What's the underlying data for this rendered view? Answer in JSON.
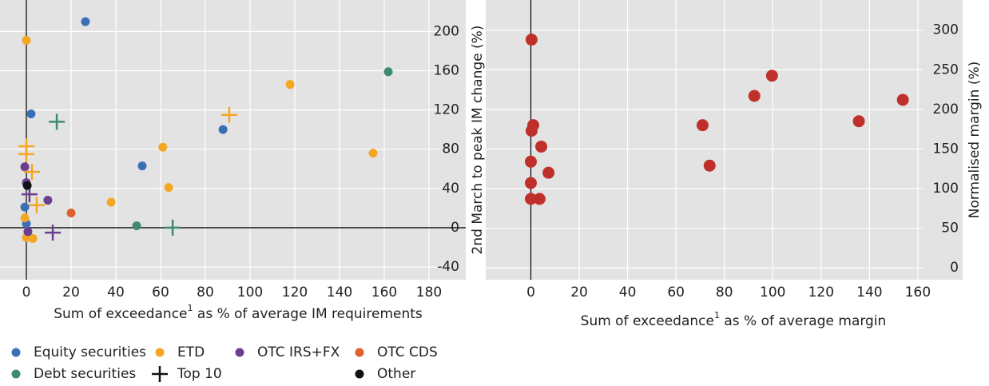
{
  "chart_data": [
    {
      "type": "scatter",
      "x_label": [
        "Sum of exceedance",
        "1",
        " as % of average IM requirements"
      ],
      "y_label": "2nd March to peak IM change (%)",
      "xlim": [
        -10,
        185
      ],
      "ylim": [
        -53,
        228
      ],
      "xticks": [
        0,
        20,
        40,
        60,
        80,
        100,
        120,
        140,
        160,
        180
      ],
      "yticks": [
        -40,
        0,
        40,
        80,
        120,
        160,
        200
      ],
      "grid": true,
      "zero_lines": true,
      "series": [
        {
          "name": "Equity securities",
          "color": "#3a6fb8",
          "marker": "dot",
          "x": [
            26.4,
            2.1,
            87.9,
            51.8,
            -0.7,
            0
          ],
          "y": [
            210,
            116,
            100,
            63,
            21,
            4
          ]
        },
        {
          "name": "ETD",
          "color": "#f5a623",
          "marker": "dot",
          "x": [
            0,
            117.9,
            61,
            155,
            63.6,
            37.9,
            -0.7,
            0,
            2.9
          ],
          "y": [
            191,
            146,
            82,
            76,
            41,
            26,
            10,
            -10,
            -11
          ]
        },
        {
          "name": "OTC IRS+FX",
          "color": "#6b3f8f",
          "marker": "dot",
          "x": [
            -0.7,
            0,
            9.6,
            0.7
          ],
          "y": [
            62,
            46,
            28,
            -4
          ]
        },
        {
          "name": "OTC CDS",
          "color": "#e0612b",
          "marker": "dot",
          "x": [
            20
          ],
          "y": [
            15
          ]
        },
        {
          "name": "Debt securities",
          "color": "#3f8a70",
          "marker": "dot",
          "x": [
            161.8,
            49.3
          ],
          "y": [
            159,
            2
          ]
        },
        {
          "name": "Top 10",
          "color": "#111111",
          "marker": "plus",
          "x": [
            13.6,
            65.4,
            90.7,
            0,
            0,
            2.5,
            4.6,
            1.4,
            11.8
          ],
          "y": [
            108,
            0,
            115,
            83,
            75,
            57,
            23,
            34,
            -5
          ],
          "point_colors": [
            "#3f8a70",
            "#3f8a70",
            "#f5a623",
            "#f5a623",
            "#f5a623",
            "#f5a623",
            "#f5a623",
            "#6b3f8f",
            "#6b3f8f"
          ]
        },
        {
          "name": "Other",
          "color": "#111111",
          "marker": "dot",
          "x": [
            0.4
          ],
          "y": [
            43
          ]
        }
      ]
    },
    {
      "type": "scatter",
      "x_label": [
        "Sum of exceedance",
        "1",
        " as % of average margin"
      ],
      "y_label": "Normalised margin (%)",
      "xlim": [
        -18,
        162
      ],
      "ylim": [
        -15,
        333
      ],
      "xticks": [
        0,
        20,
        40,
        60,
        80,
        100,
        120,
        140,
        160
      ],
      "yticks": [
        0,
        50,
        100,
        150,
        200,
        250,
        300
      ],
      "grid": true,
      "zero_lines": false,
      "series": [
        {
          "color": "#c0302b",
          "marker": "big-dot",
          "x": [
            0.3,
            99.7,
            92.4,
            153.8,
            135.6,
            71,
            1,
            0.3,
            4.3,
            0,
            73.9,
            7.3,
            0,
            0,
            3.6
          ],
          "y": [
            288,
            242.5,
            217,
            212,
            185,
            180,
            180,
            173,
            153,
            134,
            129,
            120,
            107,
            87,
            87
          ]
        }
      ]
    }
  ]
}
